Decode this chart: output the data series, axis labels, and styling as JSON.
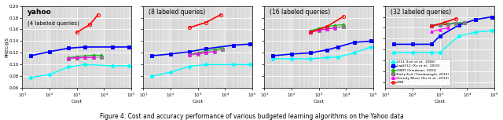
{
  "figure_caption": "Figure 4: Cost and accuracy performance of various budgeted learning algorithms on the Yahoo data",
  "subplots": [
    {
      "title1": "yahoo",
      "title2": "(4 labeled queries)",
      "xlim": [
        10,
        100000
      ],
      "ylim": [
        0.06,
        0.2
      ],
      "series": {
        "lfl1": {
          "x": [
            20,
            100,
            500,
            2000,
            20000,
            80000
          ],
          "y": [
            0.078,
            0.083,
            0.096,
            0.1,
            0.098,
            0.098
          ],
          "color": "cyan",
          "marker": "D",
          "lw": 1.0,
          "ms": 2.5
        },
        "lapLfl1": {
          "x": [
            20,
            100,
            500,
            2000,
            20000,
            80000
          ],
          "y": [
            0.115,
            0.122,
            0.128,
            0.13,
            0.13,
            0.13
          ],
          "color": "blue",
          "marker": "s",
          "lw": 1.2,
          "ms": 2.5
        },
        "gbrt": {
          "x": [
            500,
            1000,
            2000,
            4000,
            8000
          ],
          "y": [
            0.112,
            0.114,
            0.115,
            0.116,
            0.116
          ],
          "color": "#00bb00",
          "marker": "^",
          "lw": 0.8,
          "ms": 2.5
        },
        "earlyexit": {
          "x": [
            500,
            1000,
            2000,
            4000,
            8000
          ],
          "y": [
            0.11,
            0.111,
            0.112,
            0.112,
            0.113
          ],
          "color": "gray",
          "marker": "s",
          "lw": 0.8,
          "ms": 2.5
        },
        "greedymiser": {
          "x": [
            500,
            1000,
            2000,
            4000
          ],
          "y": [
            0.111,
            0.112,
            0.112,
            0.113
          ],
          "color": "magenta",
          "marker": "^",
          "lw": 0.8,
          "ms": 2.5
        },
        "grb": {
          "x": [
            1000,
            3000,
            6000
          ],
          "y": [
            0.155,
            0.168,
            0.185
          ],
          "color": "red",
          "marker": "o",
          "lw": 1.2,
          "ms": 3.0
        }
      }
    },
    {
      "title1": null,
      "title2": "(8 labeled queries)",
      "xlim": [
        10,
        100000
      ],
      "ylim": [
        0.06,
        0.2
      ],
      "series": {
        "lfl1": {
          "x": [
            20,
            100,
            500,
            2000,
            20000,
            80000
          ],
          "y": [
            0.08,
            0.087,
            0.097,
            0.1,
            0.1,
            0.1
          ],
          "color": "cyan",
          "marker": "D",
          "lw": 1.0,
          "ms": 2.5
        },
        "lapLfl1": {
          "x": [
            20,
            100,
            500,
            2000,
            20000,
            80000
          ],
          "y": [
            0.115,
            0.118,
            0.122,
            0.127,
            0.133,
            0.135
          ],
          "color": "blue",
          "marker": "s",
          "lw": 1.2,
          "ms": 2.5
        },
        "gbrt": {
          "x": [
            500,
            1000,
            2000,
            4000,
            8000
          ],
          "y": [
            0.118,
            0.12,
            0.123,
            0.126,
            0.128
          ],
          "color": "#00bb00",
          "marker": "^",
          "lw": 0.8,
          "ms": 2.5
        },
        "earlyexit": {
          "x": [
            500,
            1000,
            2000,
            4000,
            8000
          ],
          "y": [
            0.116,
            0.118,
            0.12,
            0.123,
            0.126
          ],
          "color": "gray",
          "marker": "s",
          "lw": 0.8,
          "ms": 2.5
        },
        "greedymiser": {
          "x": [
            500,
            1000,
            2000,
            4000
          ],
          "y": [
            0.117,
            0.119,
            0.121,
            0.122
          ],
          "color": "magenta",
          "marker": "^",
          "lw": 0.8,
          "ms": 2.5
        },
        "grb": {
          "x": [
            500,
            2000,
            7000
          ],
          "y": [
            0.163,
            0.172,
            0.185
          ],
          "color": "red",
          "marker": "o",
          "lw": 1.2,
          "ms": 3.0
        }
      }
    },
    {
      "title1": null,
      "title2": "(16 labeled queries)",
      "xlim": [
        10,
        100000
      ],
      "ylim": [
        0.06,
        0.2
      ],
      "series": {
        "lfl1": {
          "x": [
            20,
            100,
            500,
            2000,
            5000,
            20000,
            80000
          ],
          "y": [
            0.11,
            0.11,
            0.11,
            0.112,
            0.113,
            0.12,
            0.13
          ],
          "color": "cyan",
          "marker": "D",
          "lw": 1.0,
          "ms": 2.5
        },
        "lapLfl1": {
          "x": [
            20,
            100,
            500,
            2000,
            5000,
            20000,
            80000
          ],
          "y": [
            0.115,
            0.118,
            0.12,
            0.125,
            0.13,
            0.138,
            0.14
          ],
          "color": "blue",
          "marker": "s",
          "lw": 1.2,
          "ms": 2.5
        },
        "gbrt": {
          "x": [
            500,
            1000,
            2000,
            4000,
            8000
          ],
          "y": [
            0.158,
            0.162,
            0.165,
            0.167,
            0.168
          ],
          "color": "#00bb00",
          "marker": "^",
          "lw": 0.8,
          "ms": 2.5
        },
        "earlyexit": {
          "x": [
            500,
            1000,
            2000,
            4000,
            8000
          ],
          "y": [
            0.155,
            0.158,
            0.161,
            0.163,
            0.165
          ],
          "color": "gray",
          "marker": "s",
          "lw": 0.8,
          "ms": 2.5
        },
        "greedymiser": {
          "x": [
            500,
            1000,
            2000,
            4000
          ],
          "y": [
            0.157,
            0.159,
            0.161,
            0.162
          ],
          "color": "magenta",
          "marker": "^",
          "lw": 0.8,
          "ms": 2.5
        },
        "grb": {
          "x": [
            500,
            2000,
            8000
          ],
          "y": [
            0.155,
            0.165,
            0.182
          ],
          "color": "red",
          "marker": "o",
          "lw": 1.2,
          "ms": 3.0
        }
      }
    },
    {
      "title1": null,
      "title2": "(32 labeled queries)",
      "xlim": [
        10,
        100000
      ],
      "ylim": [
        0.05,
        0.2
      ],
      "series": {
        "lfl1": {
          "x": [
            20,
            100,
            500,
            1000,
            5000,
            20000,
            80000
          ],
          "y": [
            0.115,
            0.115,
            0.115,
            0.115,
            0.145,
            0.152,
            0.155
          ],
          "color": "cyan",
          "marker": "D",
          "lw": 1.0,
          "ms": 2.5
        },
        "lapLfl1": {
          "x": [
            20,
            100,
            500,
            1000,
            5000,
            20000,
            80000
          ],
          "y": [
            0.13,
            0.13,
            0.13,
            0.145,
            0.165,
            0.175,
            0.18
          ],
          "color": "blue",
          "marker": "s",
          "lw": 1.2,
          "ms": 2.5
        },
        "gbrt": {
          "x": [
            500,
            1000,
            2000,
            4000,
            8000
          ],
          "y": [
            0.165,
            0.167,
            0.168,
            0.169,
            0.17
          ],
          "color": "#00bb00",
          "marker": "^",
          "lw": 0.8,
          "ms": 2.5
        },
        "earlyexit": {
          "x": [
            500,
            1000,
            2000,
            4000,
            8000
          ],
          "y": [
            0.163,
            0.165,
            0.166,
            0.168,
            0.169
          ],
          "color": "gray",
          "marker": "s",
          "lw": 0.8,
          "ms": 2.5
        },
        "greedymiser": {
          "x": [
            500,
            1000,
            2000
          ],
          "y": [
            0.153,
            0.157,
            0.16
          ],
          "color": "magenta",
          "marker": "^",
          "lw": 0.8,
          "ms": 2.5
        },
        "grb": {
          "x": [
            500,
            1500,
            4000
          ],
          "y": [
            0.163,
            0.17,
            0.177
          ],
          "color": "red",
          "marker": "o",
          "lw": 1.2,
          "ms": 3.0
        }
      }
    }
  ],
  "legend": [
    {
      "label": "LFL1 (Lee et al., 2006)",
      "color": "cyan",
      "marker": "D"
    },
    {
      "label": "LapLFL1 (Xu et al., 2010)",
      "color": "blue",
      "marker": "s"
    },
    {
      "label": "GBRT (Friedman, 2001)",
      "color": "#00bb00",
      "marker": "^"
    },
    {
      "label": "Early Exit (Cambazoglu, 2010)",
      "color": "gray",
      "marker": "s"
    },
    {
      "label": "Greedy Miser (Xu et al., 2012)",
      "color": "magenta",
      "marker": "^"
    },
    {
      "label": "GRB",
      "color": "red",
      "marker": "o"
    }
  ],
  "ylabel": "PREC@5",
  "xlabel": "Cost",
  "bg_color": "#d8d8d8",
  "grid_color": "white"
}
